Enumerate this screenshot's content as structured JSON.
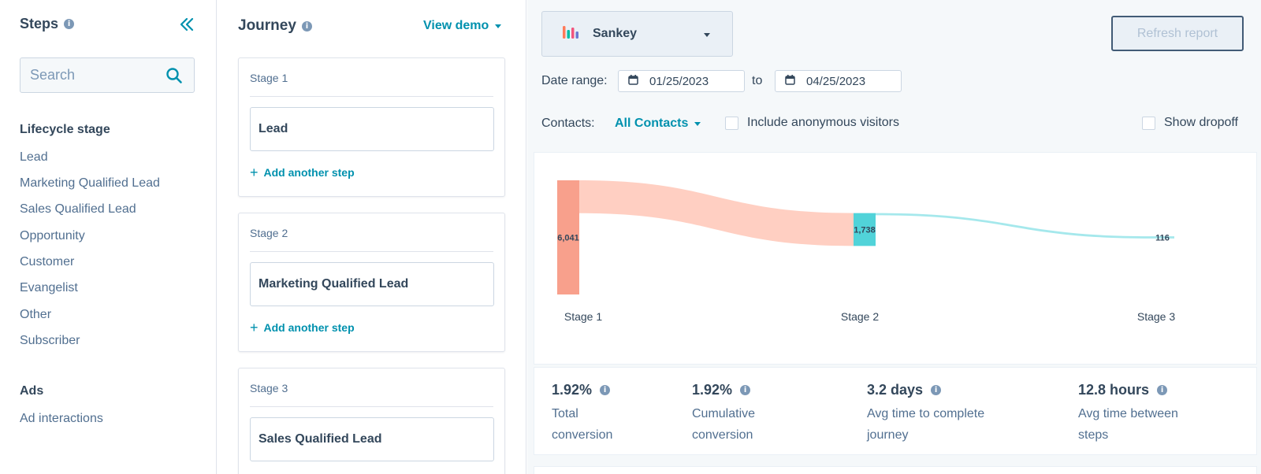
{
  "sidebar": {
    "title": "Steps",
    "search_placeholder": "Search",
    "sections": [
      {
        "title": "Lifecycle stage",
        "items": [
          "Lead",
          "Marketing Qualified Lead",
          "Sales Qualified Lead",
          "Opportunity",
          "Customer",
          "Evangelist",
          "Other",
          "Subscriber"
        ]
      },
      {
        "title": "Ads",
        "items": [
          "Ad interactions"
        ]
      }
    ]
  },
  "journey": {
    "title": "Journey",
    "view_demo": "View demo",
    "add_step_label": "Add another step",
    "stages": [
      {
        "label": "Stage 1",
        "step": "Lead"
      },
      {
        "label": "Stage 2",
        "step": "Marketing Qualified Lead"
      },
      {
        "label": "Stage 3",
        "step": "Sales Qualified Lead"
      }
    ]
  },
  "report": {
    "chart_type": "Sankey",
    "refresh_label": "Refresh report",
    "date_range_label": "Date range:",
    "date_from": "01/25/2023",
    "to_label": "to",
    "date_to": "04/25/2023",
    "contacts_label": "Contacts:",
    "contacts_value": "All Contacts",
    "include_anonymous_label": "Include anonymous visitors",
    "include_anonymous_checked": false,
    "show_dropoff_label": "Show dropoff",
    "show_dropoff_checked": false
  },
  "chart_data": {
    "type": "sankey",
    "stages": [
      "Stage 1",
      "Stage 2",
      "Stage 3"
    ],
    "values": [
      6041,
      1738,
      116
    ],
    "value_labels": [
      "6,041",
      "1,738",
      "116"
    ],
    "colors": {
      "stage1_node": "#f8a08c",
      "stage1_flow": "#ffcfc2",
      "stage2_node": "#51d3d9",
      "stage2_flow": "#a5e8ec",
      "stage3_node": "#a5e8ec"
    }
  },
  "stats": [
    {
      "value": "1.92%",
      "label_line1": "Total",
      "label_line2": "conversion"
    },
    {
      "value": "1.92%",
      "label_line1": "Cumulative",
      "label_line2": "conversion"
    },
    {
      "value": "3.2 days",
      "label_line1": "Avg time to complete",
      "label_line2": "journey"
    },
    {
      "value": "12.8 hours",
      "label_line1": "Avg time between",
      "label_line2": "steps"
    }
  ],
  "colors": {
    "accent": "#0091ae",
    "text": "#33475b",
    "muted": "#516f90"
  }
}
